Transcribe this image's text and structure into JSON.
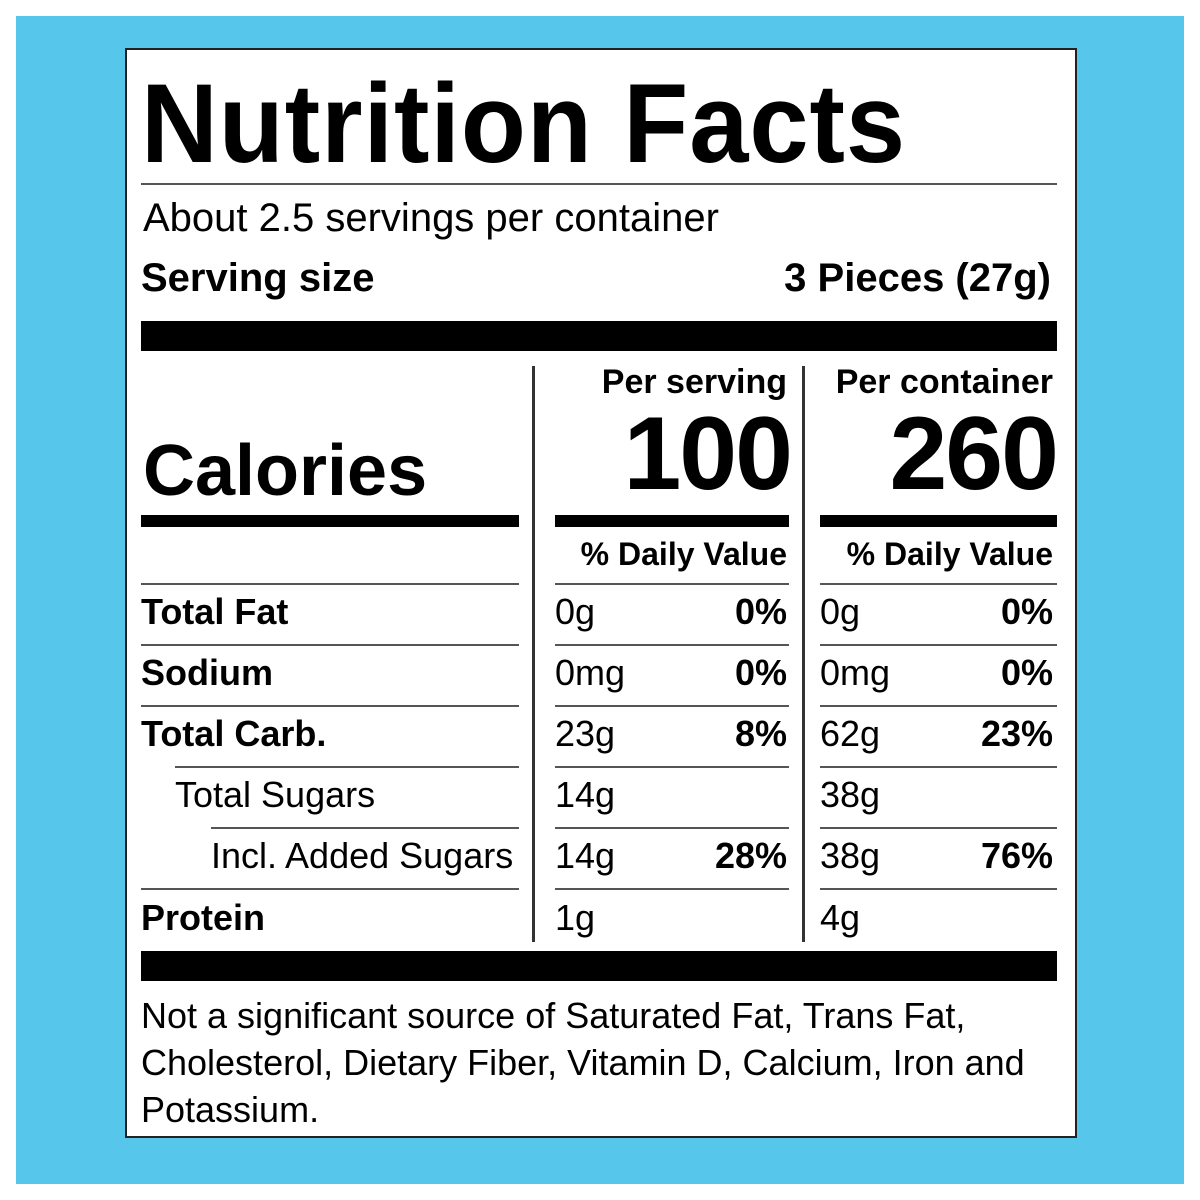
{
  "title": "Nutrition Facts",
  "servings_per_container": "About 2.5 servings per container",
  "serving_size": {
    "label": "Serving size",
    "value": "3 Pieces (27g)"
  },
  "calories": {
    "label": "Calories",
    "per_serving": {
      "header": "Per serving",
      "value": "100"
    },
    "per_container": {
      "header": "Per container",
      "value": "260"
    }
  },
  "daily_value_header": "% Daily Value",
  "nutrients": [
    {
      "name": "Total Fat",
      "serving_amount": "0g",
      "serving_dv": "0%",
      "container_amount": "0g",
      "container_dv": "0%"
    },
    {
      "name": "Sodium",
      "serving_amount": "0mg",
      "serving_dv": "0%",
      "container_amount": "0mg",
      "container_dv": "0%"
    },
    {
      "name": "Total Carb.",
      "serving_amount": "23g",
      "serving_dv": "8%",
      "container_amount": "62g",
      "container_dv": "23%"
    },
    {
      "name": "Total Sugars",
      "serving_amount": "14g",
      "serving_dv": "",
      "container_amount": "38g",
      "container_dv": ""
    },
    {
      "name": "Incl. Added Sugars",
      "serving_amount": "14g",
      "serving_dv": "28%",
      "container_amount": "38g",
      "container_dv": "76%"
    },
    {
      "name": "Protein",
      "serving_amount": "1g",
      "serving_dv": "",
      "container_amount": "4g",
      "container_dv": ""
    }
  ],
  "footnote": "Not a significant source of Saturated Fat, Trans Fat, Cholesterol, Dietary Fiber, Vitamin D, Calcium, Iron and Potassium.",
  "colors": {
    "background": "#56c7ea",
    "label": "#ffffff",
    "ink": "#000000"
  }
}
